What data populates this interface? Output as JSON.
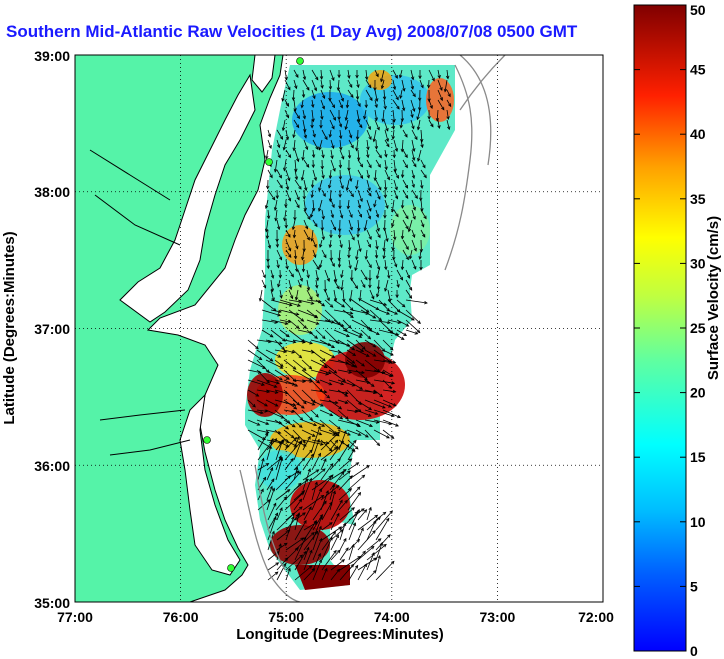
{
  "title": "Southern Mid-Atlantic Raw Velocities (1 Day Avg) 2008/07/08 0500 GMT",
  "xlabel": "Longitude (Degrees:Minutes)",
  "ylabel": "Latitude (Degrees:Minutes)",
  "colorbar_label": "Surface Velocity (cm/s)",
  "x_ticks": [
    "77:00",
    "76:00",
    "75:00",
    "74:00",
    "73:00",
    "72:00"
  ],
  "y_ticks": [
    "39:00",
    "38:00",
    "37:00",
    "36:00",
    "35:00"
  ],
  "colorbar_ticks": [
    "0",
    "5",
    "10",
    "15",
    "20",
    "25",
    "30",
    "35",
    "40",
    "45",
    "50"
  ],
  "map": {
    "lon_range": [
      -77,
      -72
    ],
    "lat_range": [
      35,
      39
    ],
    "land_color": "#55f3a8",
    "grid": "dotted",
    "colormap": "jet",
    "colorbar_range": [
      0,
      50
    ]
  }
}
